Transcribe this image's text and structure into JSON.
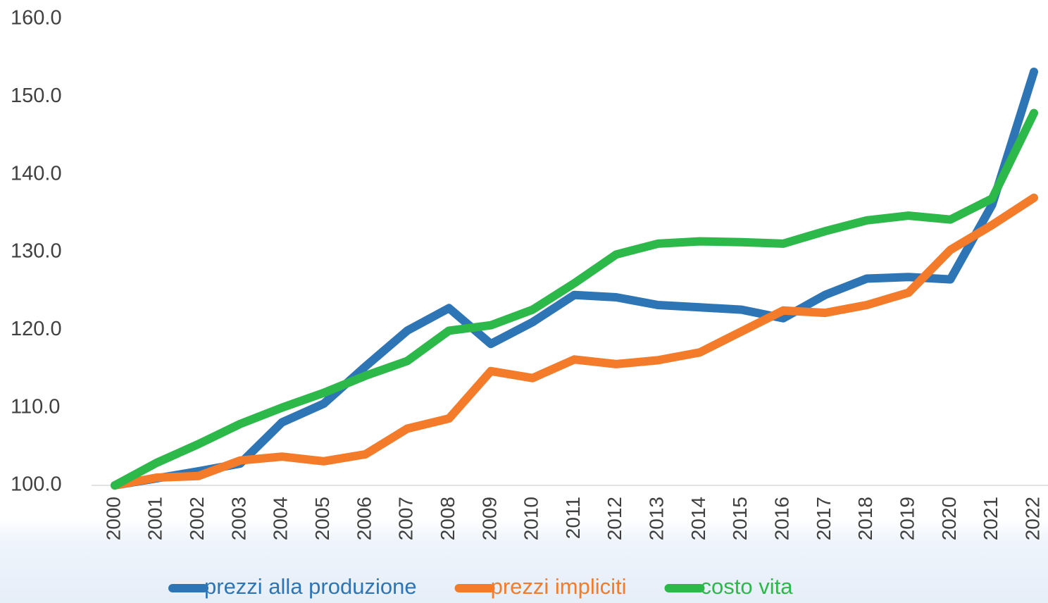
{
  "chart_data": {
    "type": "line",
    "categories": [
      "2000",
      "2001",
      "2002",
      "2003",
      "2004",
      "2005",
      "2006",
      "2007",
      "2008",
      "2009",
      "2010",
      "2011",
      "2012",
      "2013",
      "2014",
      "2015",
      "2016",
      "2017",
      "2018",
      "2019",
      "2020",
      "2021",
      "2022"
    ],
    "series": [
      {
        "name": "prezzi alla produzione",
        "color": "#2e75b6",
        "values": [
          100,
          100.9,
          101.8,
          102.8,
          108.1,
          110.5,
          115.3,
          119.9,
          122.8,
          118.2,
          121,
          124.5,
          124.2,
          123.2,
          122.9,
          122.6,
          121.5,
          124.5,
          126.6,
          126.8,
          126.5,
          136.1,
          153.2
        ]
      },
      {
        "name": "prezzi impliciti",
        "color": "#f47b2a",
        "values": [
          100,
          101,
          101.2,
          103.2,
          103.7,
          103.1,
          104,
          107.3,
          108.6,
          114.7,
          113.8,
          116.2,
          115.6,
          116.1,
          117.1,
          119.8,
          122.5,
          122.2,
          123.2,
          124.8,
          130.3,
          133.5,
          137
        ]
      },
      {
        "name": "costo vita",
        "color": "#2db84a",
        "values": [
          100,
          102.9,
          105.3,
          107.9,
          110,
          111.9,
          114.1,
          116,
          119.9,
          120.6,
          122.6,
          126,
          129.7,
          131.1,
          131.4,
          131.3,
          131.1,
          132.7,
          134.1,
          134.7,
          134.2,
          136.9,
          147.9
        ]
      }
    ],
    "ylim": [
      100,
      160
    ],
    "yticks": [
      {
        "value": 100,
        "label": "100.0"
      },
      {
        "value": 110,
        "label": "110.0"
      },
      {
        "value": 120,
        "label": "120.0"
      },
      {
        "value": 130,
        "label": "130.0"
      },
      {
        "value": 140,
        "label": "140.0"
      },
      {
        "value": 150,
        "label": "150.0"
      },
      {
        "value": 160,
        "label": "160.0"
      }
    ],
    "grid": false,
    "legend": "bottom"
  }
}
